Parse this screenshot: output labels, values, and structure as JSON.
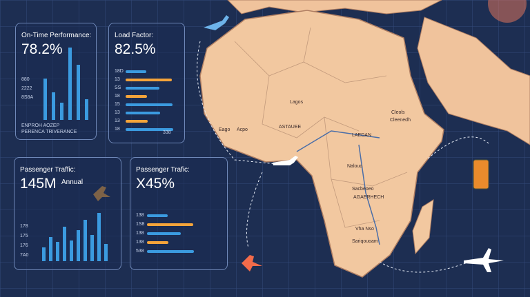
{
  "panels": [
    {
      "title": "On-Time Performance:",
      "value": "78.2%",
      "labels": [
        "880",
        "2222",
        "8S8A"
      ],
      "footer": [
        "ENPROH AOZEP",
        "PERENCA TRIVERANCE"
      ]
    },
    {
      "title": "Load Factor:",
      "value": "82.5%",
      "labels": [
        "18D",
        "13",
        "SS",
        "18",
        "15",
        "13",
        "13",
        "18"
      ],
      "footer": [
        "338"
      ]
    },
    {
      "title": "Passenger Traffic:",
      "value": "145M",
      "labels": [
        "178",
        "175",
        "176",
        "7A0"
      ],
      "footer": [
        "Annual"
      ]
    },
    {
      "title": "Passenger Trafic:",
      "value": "X45%",
      "labels": [
        "138",
        "1S8",
        "138",
        "138",
        "538"
      ],
      "footer": []
    }
  ],
  "map_labels": [
    "Lagos",
    "Eago",
    "Acpo",
    "ASTAUEE",
    "LAEDAN",
    "Nalouo",
    "Sacbeoeo",
    "AGAERHECH",
    "Vha Nso",
    "Sariqouoam",
    "Cleols",
    "Cleenedh"
  ]
}
